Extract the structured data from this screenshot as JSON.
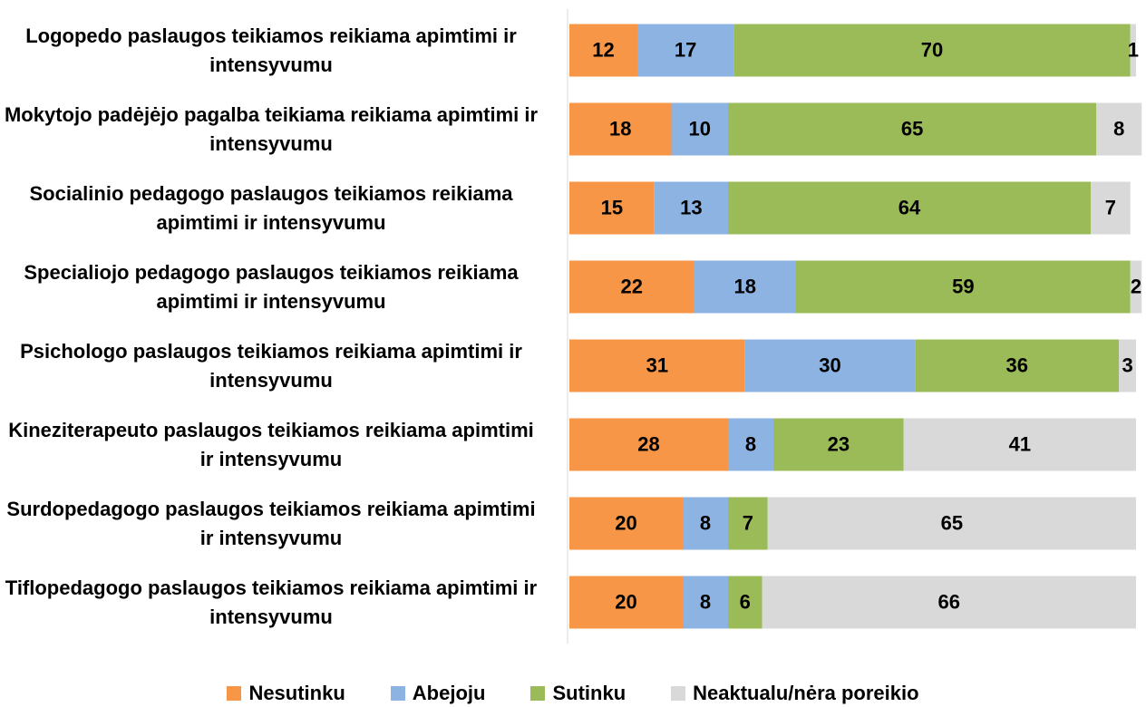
{
  "chart_data": {
    "type": "stacked-bar-horizontal",
    "categories": [
      "Logopedo paslaugos teikiamos reikiama apimtimi ir intensyvumu",
      "Mokytojo padėjėjo pagalba teikiama reikiama apimtimi ir intensyvumu",
      "Socialinio pedagogo paslaugos teikiamos reikiama apimtimi ir intensyvumu",
      "Specialiojo pedagogo paslaugos teikiamos reikiama apimtimi ir intensyvumu",
      "Psichologo paslaugos teikiamos reikiama apimtimi ir intensyvumu",
      "Kineziterapeuto paslaugos teikiamos reikiama apimtimi ir intensyvumu",
      "Surdopedagogo paslaugos teikiamos reikiama apimtimi ir intensyvumu",
      "Tiflopedagogo paslaugos teikiamos reikiama apimtimi ir intensyvumu"
    ],
    "series": [
      {
        "name": "Nesutinku",
        "color": "#f79646",
        "values": [
          12,
          18,
          15,
          22,
          31,
          28,
          20,
          20
        ]
      },
      {
        "name": "Abejoju",
        "color": "#8db3e2",
        "values": [
          17,
          10,
          13,
          18,
          30,
          8,
          8,
          8
        ]
      },
      {
        "name": "Sutinku",
        "color": "#9bbb59",
        "values": [
          70,
          65,
          64,
          59,
          36,
          23,
          7,
          6
        ]
      },
      {
        "name": "Neaktualu/nėra poreikio",
        "color": "#d9d9d9",
        "values": [
          1,
          8,
          7,
          2,
          3,
          41,
          65,
          66
        ]
      }
    ],
    "xlim": [
      0,
      100
    ],
    "legend": "bottom"
  }
}
